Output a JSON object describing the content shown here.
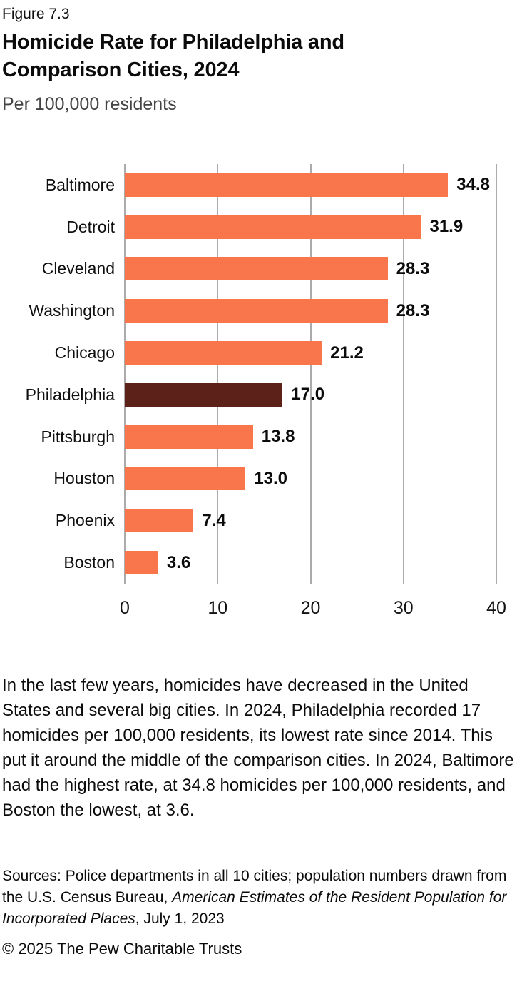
{
  "figure_label": "Figure 7.3",
  "title": "Homicide Rate for Philadelphia and Comparison Cities, 2024",
  "subtitle": "Per 100,000 residents",
  "chart_data": {
    "type": "bar",
    "orientation": "horizontal",
    "title": "Homicide Rate for Philadelphia and Comparison Cities, 2024",
    "subtitle": "Per 100,000 residents",
    "categories": [
      "Baltimore",
      "Detroit",
      "Cleveland",
      "Washington",
      "Chicago",
      "Philadelphia",
      "Pittsburgh",
      "Houston",
      "Phoenix",
      "Boston"
    ],
    "values": [
      34.8,
      31.9,
      28.3,
      28.3,
      21.2,
      17.0,
      13.8,
      13.0,
      7.4,
      3.6
    ],
    "value_labels": [
      "34.8",
      "31.9",
      "28.3",
      "28.3",
      "21.2",
      "17.0",
      "13.8",
      "13.0",
      "7.4",
      "3.6"
    ],
    "highlight_category": "Philadelphia",
    "bar_color": "#F9764D",
    "highlight_color": "#5C2118",
    "gridline_color": "#ababab",
    "xlabel": "",
    "ylabel": "",
    "xlim": [
      0,
      40
    ],
    "x_ticks": [
      0,
      10,
      20,
      30,
      40
    ],
    "grid": "vertical-gridlines-on",
    "legend": "none"
  },
  "body_text": "In the last few years, homicides have decreased in the United States and several big cities. In 2024, Philadelphia recorded 17 homicides per 100,000 residents, its lowest rate since 2014. This put it around the middle of the comparison cities. In 2024, Baltimore had the highest rate, at 34.8 homicides per 100,000 residents, and Boston the lowest, at 3.6.",
  "sources": {
    "prefix": "Sources: Police departments in all 10 cities; population numbers drawn from the U.S. Census Bureau, ",
    "italic": "American Estimates of the Resident Population for Incorporated Places",
    "suffix": ", July 1, 2023"
  },
  "copyright": "© 2025 The Pew Charitable Trusts"
}
